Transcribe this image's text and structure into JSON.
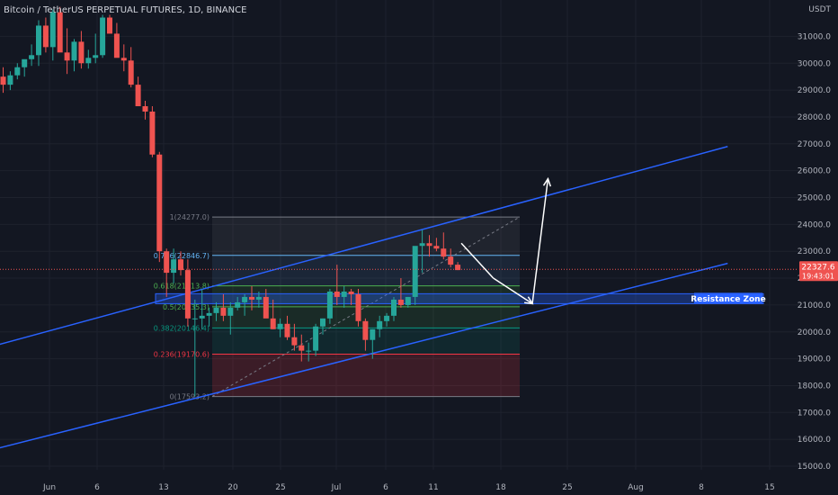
{
  "header": {
    "title": "Bitcoin / TetherUS PERPETUAL FUTURES, 1D, BINANCE"
  },
  "price_axis": {
    "unit": "USDT",
    "ticks": [
      "31000.0",
      "30000.0",
      "29000.0",
      "28000.0",
      "27000.0",
      "26000.0",
      "25000.0",
      "24000.0",
      "23000.0",
      "22000.0",
      "21000.0",
      "20000.0",
      "19000.0",
      "18000.0",
      "17000.0",
      "16000.0",
      "15000.0"
    ],
    "current_price": "22327.6",
    "countdown": "19:43:01"
  },
  "time_axis": {
    "ticks": [
      "Jun",
      "6",
      "13",
      "20",
      "25",
      "Jul",
      "6",
      "11",
      "18",
      "25",
      "Aug",
      "8",
      "15"
    ]
  },
  "annotations": {
    "resistance_label": "Resistance Zone"
  },
  "colors": {
    "background": "#131722",
    "up": "#26a69a",
    "down": "#ef5350",
    "channel": "#2962ff",
    "zone": "#2962ff",
    "price_line": "#ef5350",
    "arrow": "#ffffff"
  },
  "chart_data": {
    "type": "candlestick",
    "title": "Bitcoin / TetherUS PERPETUAL FUTURES, 1D, BINANCE",
    "ylabel": "USDT",
    "ylim": [
      14900,
      31900
    ],
    "x_ticks": [
      "Jun",
      "6",
      "13",
      "20",
      "25",
      "Jul",
      "6",
      "11",
      "18",
      "25",
      "Aug",
      "8",
      "15"
    ],
    "candles_ohlc": [
      [
        29500,
        29850,
        28900,
        29200
      ],
      [
        29200,
        29700,
        29000,
        29550
      ],
      [
        29550,
        30000,
        29400,
        29850
      ],
      [
        29850,
        30050,
        29500,
        30150
      ],
      [
        30150,
        30700,
        29900,
        30300
      ],
      [
        30300,
        31600,
        29900,
        31400
      ],
      [
        31400,
        31700,
        30400,
        30600
      ],
      [
        30600,
        32000,
        30100,
        31900
      ],
      [
        31900,
        32100,
        30700,
        30400
      ],
      [
        30400,
        31300,
        29600,
        30100
      ],
      [
        30100,
        30900,
        29700,
        30800
      ],
      [
        30800,
        31200,
        29800,
        30000
      ],
      [
        30000,
        30500,
        29800,
        30200
      ],
      [
        30200,
        31100,
        30000,
        30300
      ],
      [
        30300,
        31800,
        30200,
        31700
      ],
      [
        31700,
        31800,
        31200,
        31100
      ],
      [
        31100,
        31500,
        30400,
        30200
      ],
      [
        30200,
        30700,
        29700,
        30100
      ],
      [
        30100,
        30600,
        29100,
        29200
      ],
      [
        29200,
        29500,
        28400,
        28400
      ],
      [
        28400,
        28600,
        27900,
        28200
      ],
      [
        28200,
        28400,
        26500,
        26600
      ],
      [
        26600,
        26700,
        22600,
        23000
      ],
      [
        23000,
        23100,
        21300,
        22200
      ],
      [
        22200,
        23100,
        21800,
        22700
      ],
      [
        22700,
        23000,
        22100,
        22300
      ],
      [
        22300,
        22700,
        20200,
        20500
      ],
      [
        20500,
        21200,
        17600,
        20500
      ],
      [
        20500,
        21600,
        20100,
        20600
      ],
      [
        20600,
        20900,
        20200,
        20700
      ],
      [
        20700,
        21100,
        20400,
        20900
      ],
      [
        20900,
        21400,
        20400,
        20600
      ],
      [
        20600,
        21100,
        19900,
        20900
      ],
      [
        20900,
        21300,
        20800,
        21100
      ],
      [
        21100,
        21400,
        20600,
        21300
      ],
      [
        21300,
        21700,
        20800,
        21200
      ],
      [
        21200,
        21500,
        20900,
        21300
      ],
      [
        21300,
        21600,
        20800,
        20500
      ],
      [
        20500,
        21200,
        20100,
        20100
      ],
      [
        20100,
        20500,
        19800,
        20300
      ],
      [
        20300,
        20600,
        19700,
        19800
      ],
      [
        19800,
        20300,
        19300,
        19500
      ],
      [
        19500,
        19900,
        18900,
        19300
      ],
      [
        19300,
        19600,
        18900,
        19300
      ],
      [
        19300,
        20300,
        19100,
        20200
      ],
      [
        20200,
        20500,
        19900,
        20500
      ],
      [
        20500,
        21600,
        20300,
        21500
      ],
      [
        21500,
        22500,
        21000,
        21300
      ],
      [
        21300,
        21700,
        20900,
        21500
      ],
      [
        21500,
        21600,
        21000,
        21400
      ],
      [
        21400,
        21600,
        20200,
        20400
      ],
      [
        20400,
        20500,
        19300,
        19700
      ],
      [
        19700,
        20100,
        19000,
        20100
      ],
      [
        20100,
        20600,
        19800,
        20400
      ],
      [
        20400,
        20700,
        20200,
        20600
      ],
      [
        20600,
        21300,
        20400,
        21200
      ],
      [
        21200,
        22000,
        20900,
        21000
      ],
      [
        21000,
        21300,
        20900,
        21300
      ],
      [
        21300,
        22000,
        21000,
        23200
      ],
      [
        23200,
        23800,
        22200,
        23300
      ],
      [
        23300,
        23600,
        22800,
        23200
      ],
      [
        23200,
        23500,
        23000,
        23100
      ],
      [
        23100,
        23700,
        22700,
        22800
      ],
      [
        22800,
        23100,
        22400,
        22500
      ],
      [
        22500,
        22600,
        22300,
        22300
      ]
    ],
    "current_price": 22327.6,
    "fibonacci": {
      "levels": [
        {
          "ratio": "1",
          "price": 24277.0
        },
        {
          "ratio": "0.786",
          "price": 22846.7
        },
        {
          "ratio": "0.618",
          "price": 21713.8
        },
        {
          "ratio": "0.5",
          "price": 20935.3
        },
        {
          "ratio": "0.382",
          "price": 20146.4
        },
        {
          "ratio": "0.236",
          "price": 19170.6
        },
        {
          "ratio": "0",
          "price": 17593.2
        }
      ]
    },
    "resistance_zone": {
      "low": 21050,
      "high": 21420,
      "label": "Resistance Zone"
    },
    "channel": {
      "upper_line": {
        "start_candle": -1,
        "start_price": 19500,
        "end_candle": 102,
        "end_price": 26900
      },
      "lower_line": {
        "start_candle": -1,
        "start_price": 15650,
        "end_candle": 102,
        "end_price": 22550
      }
    },
    "projection": [
      [
        64.5,
        23300
      ],
      [
        69,
        22000
      ],
      [
        74.5,
        21050
      ],
      [
        76.7,
        25700
      ]
    ]
  }
}
